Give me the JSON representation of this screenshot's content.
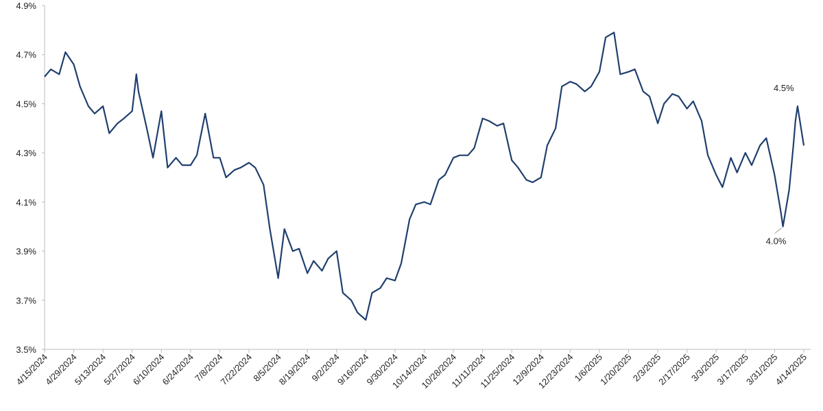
{
  "chart_data": {
    "type": "line",
    "x": [
      "4/15/2024",
      "4/18/2024",
      "4/22/2024",
      "4/25/2024",
      "4/29/2024",
      "5/2/2024",
      "5/6/2024",
      "5/9/2024",
      "5/13/2024",
      "5/16/2024",
      "5/20/2024",
      "5/23/2024",
      "5/27/2024",
      "5/29/2024",
      "5/30/2024",
      "6/3/2024",
      "6/6/2024",
      "6/10/2024",
      "6/13/2024",
      "6/17/2024",
      "6/20/2024",
      "6/24/2024",
      "6/27/2024",
      "7/1/2024",
      "7/5/2024",
      "7/8/2024",
      "7/11/2024",
      "7/15/2024",
      "7/18/2024",
      "7/22/2024",
      "7/25/2024",
      "7/29/2024",
      "8/1/2024",
      "8/5/2024",
      "8/8/2024",
      "8/12/2024",
      "8/15/2024",
      "8/19/2024",
      "8/22/2024",
      "8/26/2024",
      "8/29/2024",
      "9/2/2024",
      "9/5/2024",
      "9/9/2024",
      "9/12/2024",
      "9/16/2024",
      "9/19/2024",
      "9/23/2024",
      "9/26/2024",
      "9/30/2024",
      "10/3/2024",
      "10/7/2024",
      "10/10/2024",
      "10/14/2024",
      "10/17/2024",
      "10/21/2024",
      "10/24/2024",
      "10/28/2024",
      "10/31/2024",
      "11/4/2024",
      "11/7/2024",
      "11/11/2024",
      "11/14/2024",
      "11/18/2024",
      "11/21/2024",
      "11/25/2024",
      "11/28/2024",
      "12/2/2024",
      "12/5/2024",
      "12/9/2024",
      "12/12/2024",
      "12/16/2024",
      "12/19/2024",
      "12/23/2024",
      "12/26/2024",
      "12/30/2024",
      "1/2/2025",
      "1/6/2025",
      "1/9/2025",
      "1/13/2025",
      "1/16/2025",
      "1/20/2025",
      "1/23/2025",
      "1/27/2025",
      "1/30/2025",
      "2/3/2025",
      "2/6/2025",
      "2/10/2025",
      "2/13/2025",
      "2/17/2025",
      "2/20/2025",
      "2/24/2025",
      "2/27/2025",
      "3/3/2025",
      "3/6/2025",
      "3/10/2025",
      "3/13/2025",
      "3/17/2025",
      "3/20/2025",
      "3/24/2025",
      "3/27/2025",
      "3/31/2025",
      "4/3/2025",
      "4/4/2025",
      "4/7/2025",
      "4/9/2025",
      "4/10/2025",
      "4/11/2025",
      "4/14/2025"
    ],
    "series": [
      {
        "color": "#1f3f6e",
        "values": [
          4.61,
          4.64,
          4.62,
          4.71,
          4.66,
          4.57,
          4.49,
          4.46,
          4.49,
          4.38,
          4.42,
          4.44,
          4.47,
          4.62,
          4.55,
          4.4,
          4.28,
          4.47,
          4.24,
          4.28,
          4.25,
          4.25,
          4.29,
          4.46,
          4.28,
          4.28,
          4.2,
          4.23,
          4.24,
          4.26,
          4.24,
          4.17,
          3.99,
          3.79,
          3.99,
          3.9,
          3.91,
          3.81,
          3.86,
          3.82,
          3.87,
          3.9,
          3.73,
          3.7,
          3.65,
          3.62,
          3.73,
          3.75,
          3.79,
          3.78,
          3.85,
          4.03,
          4.09,
          4.1,
          4.09,
          4.19,
          4.21,
          4.28,
          4.29,
          4.29,
          4.32,
          4.44,
          4.43,
          4.41,
          4.42,
          4.27,
          4.24,
          4.19,
          4.18,
          4.2,
          4.33,
          4.4,
          4.57,
          4.59,
          4.58,
          4.55,
          4.57,
          4.63,
          4.77,
          4.79,
          4.62,
          4.63,
          4.64,
          4.55,
          4.53,
          4.42,
          4.5,
          4.54,
          4.53,
          4.48,
          4.51,
          4.43,
          4.29,
          4.21,
          4.16,
          4.28,
          4.22,
          4.3,
          4.25,
          4.33,
          4.36,
          4.21,
          4.06,
          4.0,
          4.15,
          4.33,
          4.43,
          4.49,
          4.33
        ]
      }
    ],
    "xticks": [
      "4/15/2024",
      "4/29/2024",
      "5/13/2024",
      "5/27/2024",
      "6/10/2024",
      "6/24/2024",
      "7/8/2024",
      "7/22/2024",
      "8/5/2024",
      "8/19/2024",
      "9/2/2024",
      "9/16/2024",
      "9/30/2024",
      "10/14/2024",
      "10/28/2024",
      "11/11/2024",
      "11/25/2024",
      "12/9/2024",
      "12/23/2024",
      "1/6/2025",
      "1/20/2025",
      "2/3/2025",
      "2/17/2025",
      "3/3/2025",
      "3/17/2025",
      "3/31/2025",
      "4/14/2025"
    ],
    "ylim": [
      3.5,
      4.9
    ],
    "yticks": [
      {
        "value": 3.5,
        "label": "3.5%"
      },
      {
        "value": 3.7,
        "label": "3.7%"
      },
      {
        "value": 3.9,
        "label": "3.9%"
      },
      {
        "value": 4.1,
        "label": "4.1%"
      },
      {
        "value": 4.3,
        "label": "4.3%"
      },
      {
        "value": 4.5,
        "label": "4.5%"
      },
      {
        "value": 4.7,
        "label": "4.7%"
      },
      {
        "value": 4.9,
        "label": "4.9%"
      }
    ],
    "annotations": [
      {
        "text": "4.5%",
        "x": "4/11/2025",
        "y": 4.49
      },
      {
        "text": "4.0%",
        "x": "4/4/2025",
        "y": 4.0
      }
    ]
  }
}
